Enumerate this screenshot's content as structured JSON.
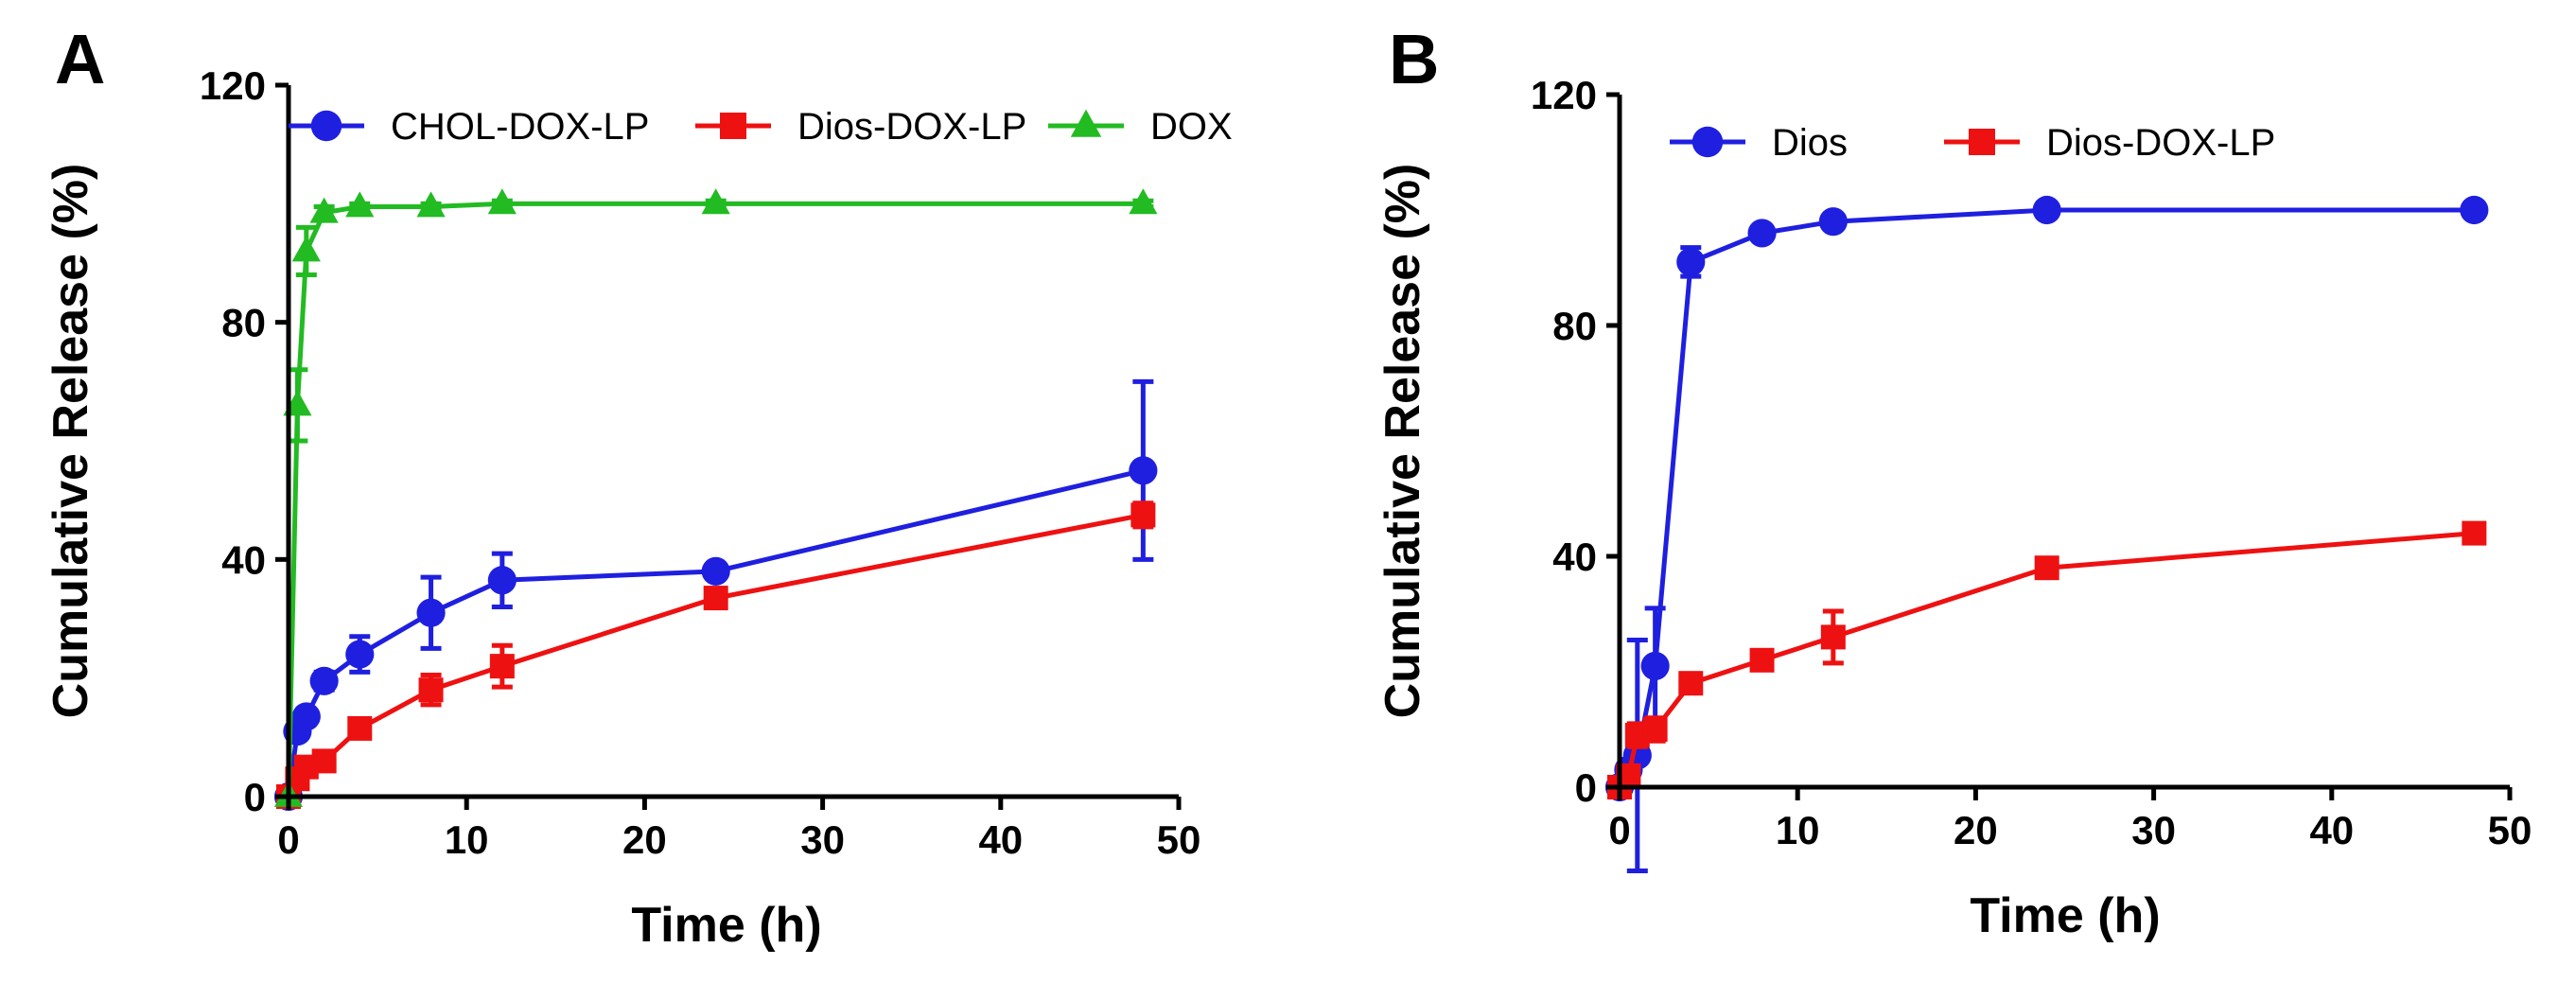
{
  "chart_data": [
    {
      "type": "line",
      "panel_label": "A",
      "xlabel": "Time (h)",
      "ylabel": "Cumulative Release (%)",
      "xlim": [
        0,
        50
      ],
      "ylim": [
        0,
        120
      ],
      "xticks": [
        "0",
        "10",
        "20",
        "30",
        "40",
        "50"
      ],
      "yticks": [
        "0",
        "40",
        "80",
        "120"
      ],
      "legend_position": "top",
      "series": [
        {
          "name": "CHOL-DOX-LP",
          "color": "#1f1fe0",
          "marker": "circle",
          "x": [
            0,
            0.5,
            1,
            2,
            4,
            8,
            12,
            24,
            48
          ],
          "y": [
            0,
            11,
            13.5,
            19.5,
            24,
            31,
            36.5,
            38,
            55
          ],
          "err": [
            0,
            1,
            1,
            1.5,
            3,
            6,
            4.5,
            1,
            15
          ]
        },
        {
          "name": "Dios-DOX-LP",
          "color": "#ee1111",
          "marker": "square",
          "x": [
            0,
            0.5,
            1,
            2,
            4,
            8,
            12,
            24,
            48
          ],
          "y": [
            0,
            3,
            5,
            6,
            11.5,
            18,
            22,
            33.5,
            47.5
          ],
          "err": [
            0,
            0.5,
            1,
            1,
            1.5,
            2.5,
            3.5,
            1.5,
            2
          ]
        },
        {
          "name": "DOX",
          "color": "#22bb22",
          "marker": "triangle",
          "x": [
            0,
            0.5,
            1,
            2,
            4,
            8,
            12,
            24,
            48
          ],
          "y": [
            0,
            66,
            92,
            98.5,
            99.5,
            99.5,
            100,
            100,
            100
          ],
          "err": [
            0,
            6,
            4,
            1,
            0.5,
            0.5,
            0.5,
            0.5,
            0.5
          ]
        }
      ]
    },
    {
      "type": "line",
      "panel_label": "B",
      "xlabel": "Time (h)",
      "ylabel": "Cumulative Release (%)",
      "xlim": [
        0,
        50
      ],
      "ylim": [
        0,
        120
      ],
      "xticks": [
        "0",
        "10",
        "20",
        "30",
        "40",
        "50"
      ],
      "yticks": [
        "0",
        "40",
        "80",
        "120"
      ],
      "legend_position": "top",
      "series": [
        {
          "name": "Dios",
          "color": "#1f1fe0",
          "marker": "circle",
          "x": [
            0,
            0.5,
            1,
            2,
            4,
            8,
            12,
            24,
            48
          ],
          "y": [
            0,
            3,
            5.5,
            21,
            91,
            96,
            98,
            100,
            100
          ],
          "err": [
            0,
            1,
            20,
            10,
            2.5,
            1,
            1,
            0.5,
            0.5
          ]
        },
        {
          "name": "Dios-DOX-LP",
          "color": "#ee1111",
          "marker": "square",
          "x": [
            0,
            0.5,
            1,
            2,
            4,
            8,
            12,
            24,
            48
          ],
          "y": [
            0,
            2,
            9,
            10,
            18,
            22,
            26,
            38,
            44
          ],
          "err": [
            0,
            1,
            2,
            2,
            1.5,
            1.5,
            4.5,
            1.5,
            1
          ]
        }
      ]
    }
  ]
}
